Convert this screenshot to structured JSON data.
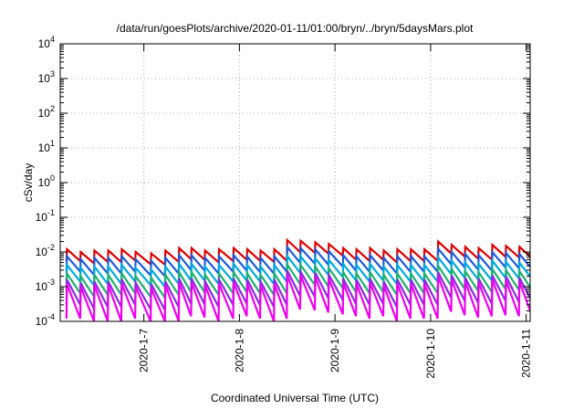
{
  "chart_data": {
    "type": "line",
    "title": "/data/run/goesPlots/archive/2020-01-11/01:00/bryn/../bryn/5daysMars.plot",
    "xlabel": "Coordinated Universal Time (UTC)",
    "ylabel": "cSv/day",
    "yscale": "log",
    "ylim": [
      0.0001,
      10000
    ],
    "xlim": [
      "2020-01-06T03:00",
      "2020-01-11T01:00"
    ],
    "y_ticks": [
      {
        "base": "10",
        "exp": "-4"
      },
      {
        "base": "10",
        "exp": "-3"
      },
      {
        "base": "10",
        "exp": "-2"
      },
      {
        "base": "10",
        "exp": "-1"
      },
      {
        "base": "10",
        "exp": "0"
      },
      {
        "base": "10",
        "exp": "1"
      },
      {
        "base": "10",
        "exp": "2"
      },
      {
        "base": "10",
        "exp": "3"
      },
      {
        "base": "10",
        "exp": "4"
      }
    ],
    "x_ticks": [
      "2020-1-7",
      "2020-1-8",
      "2020-1-9",
      "2020-1-10",
      "2020-1-11"
    ],
    "grid": true,
    "legend": "none",
    "peak_times": [
      "2020-01-06T04:42",
      "2020-01-06T08:09",
      "2020-01-06T11:36",
      "2020-01-06T15:04",
      "2020-01-06T18:28",
      "2020-01-06T21:57",
      "2020-01-07T01:50",
      "2020-01-07T05:25",
      "2020-01-07T08:52",
      "2020-01-07T11:59",
      "2020-01-07T15:23",
      "2020-01-07T18:54",
      "2020-01-07T22:33",
      "2020-01-08T01:58",
      "2020-01-08T05:19",
      "2020-01-08T08:47",
      "2020-01-08T12:01",
      "2020-01-08T15:22",
      "2020-01-08T19:04",
      "2020-01-08T22:27",
      "2020-01-09T02:05",
      "2020-01-09T05:24",
      "2020-01-09T08:49",
      "2020-01-09T12:15",
      "2020-01-09T15:40",
      "2020-01-09T19:04",
      "2020-01-09T22:28",
      "2020-01-10T01:54",
      "2020-01-10T05:18",
      "2020-01-10T08:42",
      "2020-01-10T12:05",
      "2020-01-10T15:31",
      "2020-01-10T18:57",
      "2020-01-10T22:19"
    ],
    "series": [
      {
        "color": "#dd0000",
        "peak": [
          0.012,
          0.01,
          0.011,
          0.011,
          0.012,
          0.01,
          0.009,
          0.011,
          0.013,
          0.013,
          0.011,
          0.012,
          0.013,
          0.012,
          0.011,
          0.012,
          0.022,
          0.021,
          0.019,
          0.017,
          0.013,
          0.012,
          0.013,
          0.011,
          0.012,
          0.012,
          0.012,
          0.02,
          0.016,
          0.014,
          0.013,
          0.016,
          0.015,
          0.014
        ],
        "trough": [
          0.0055,
          0.0047,
          0.0052,
          0.0051,
          0.0057,
          0.0044,
          0.0043,
          0.0052,
          0.0062,
          0.006,
          0.005,
          0.0055,
          0.006,
          0.0056,
          0.0052,
          0.0056,
          0.01,
          0.0095,
          0.009,
          0.0078,
          0.006,
          0.0055,
          0.006,
          0.005,
          0.0055,
          0.0055,
          0.0056,
          0.0091,
          0.0074,
          0.0064,
          0.006,
          0.0073,
          0.007,
          0.0064
        ]
      },
      {
        "color": "#1e5ad8",
        "peak": [
          0.0075,
          0.0062,
          0.0068,
          0.0068,
          0.0075,
          0.0062,
          0.0056,
          0.0068,
          0.0081,
          0.008,
          0.0068,
          0.0075,
          0.0081,
          0.0074,
          0.0068,
          0.0075,
          0.0138,
          0.013,
          0.0118,
          0.0105,
          0.0081,
          0.0075,
          0.0081,
          0.0068,
          0.0075,
          0.0075,
          0.0075,
          0.0124,
          0.0099,
          0.0087,
          0.0081,
          0.0099,
          0.0093,
          0.0087
        ],
        "trough": [
          0.0027,
          0.0022,
          0.0024,
          0.0024,
          0.0027,
          0.0021,
          0.002,
          0.0024,
          0.003,
          0.0029,
          0.0024,
          0.0027,
          0.0029,
          0.0026,
          0.0024,
          0.0027,
          0.0049,
          0.0046,
          0.0043,
          0.0038,
          0.0029,
          0.0027,
          0.0029,
          0.0024,
          0.0027,
          0.0027,
          0.0027,
          0.0044,
          0.0036,
          0.0031,
          0.0029,
          0.0036,
          0.0034,
          0.0031
        ]
      },
      {
        "color": "#00aadd",
        "peak": [
          0.0042,
          0.0035,
          0.0038,
          0.0038,
          0.0042,
          0.0035,
          0.0031,
          0.0038,
          0.0045,
          0.0045,
          0.0038,
          0.0042,
          0.0045,
          0.0042,
          0.0038,
          0.0042,
          0.0077,
          0.0073,
          0.0066,
          0.0059,
          0.0045,
          0.0042,
          0.0045,
          0.0038,
          0.0042,
          0.0042,
          0.0042,
          0.007,
          0.0056,
          0.0049,
          0.0045,
          0.0056,
          0.0052,
          0.0049
        ],
        "trough": [
          0.0014,
          0.0011,
          0.0012,
          0.0012,
          0.0014,
          0.0011,
          0.001,
          0.0012,
          0.0015,
          0.0015,
          0.0012,
          0.0014,
          0.0015,
          0.0014,
          0.0012,
          0.0014,
          0.0025,
          0.0024,
          0.0022,
          0.0019,
          0.0015,
          0.0014,
          0.0015,
          0.0012,
          0.0014,
          0.0014,
          0.0014,
          0.0023,
          0.0018,
          0.0016,
          0.0015,
          0.0018,
          0.0017,
          0.0016
        ]
      },
      {
        "color": "#20b070",
        "peak": [
          0.0024,
          0.002,
          0.0022,
          0.0022,
          0.0024,
          0.002,
          0.0018,
          0.0022,
          0.0026,
          0.0026,
          0.0022,
          0.0024,
          0.0026,
          0.0024,
          0.0022,
          0.0024,
          0.0044,
          0.0042,
          0.0038,
          0.0034,
          0.0026,
          0.0024,
          0.0026,
          0.0022,
          0.0024,
          0.0024,
          0.0024,
          0.004,
          0.0032,
          0.0028,
          0.0026,
          0.0032,
          0.003,
          0.0028
        ],
        "trough": [
          0.00065,
          0.00052,
          0.00058,
          0.00058,
          0.00065,
          0.0005,
          0.00048,
          0.00058,
          0.0007,
          0.00069,
          0.00058,
          0.00065,
          0.0007,
          0.00064,
          0.00058,
          0.00065,
          0.00118,
          0.00112,
          0.00102,
          0.00091,
          0.0007,
          0.00065,
          0.0007,
          0.00058,
          0.00065,
          0.00065,
          0.00065,
          0.00106,
          0.00086,
          0.00075,
          0.0007,
          0.00086,
          0.0008,
          0.00075
        ]
      },
      {
        "color": "#8a2be2",
        "peak": [
          0.0016,
          0.0013,
          0.0014,
          0.0014,
          0.0016,
          0.0013,
          0.0012,
          0.0014,
          0.0017,
          0.0017,
          0.0014,
          0.0016,
          0.0017,
          0.0016,
          0.0014,
          0.0016,
          0.0029,
          0.0027,
          0.0025,
          0.0022,
          0.0017,
          0.0016,
          0.0017,
          0.0014,
          0.0016,
          0.0016,
          0.0016,
          0.0026,
          0.0021,
          0.0018,
          0.0017,
          0.0021,
          0.002,
          0.0018
        ],
        "trough": [
          0.0003,
          0.00023,
          0.00026,
          0.00026,
          0.0003,
          0.00022,
          0.00021,
          0.00026,
          0.00032,
          0.00031,
          0.00026,
          0.0003,
          0.00032,
          0.00029,
          0.00026,
          0.0003,
          0.00054,
          0.00051,
          0.00046,
          0.00041,
          0.00032,
          0.0003,
          0.00032,
          0.00026,
          0.0003,
          0.0003,
          0.0003,
          0.00048,
          0.00039,
          0.00034,
          0.00032,
          0.00039,
          0.00036,
          0.00034
        ]
      },
      {
        "color": "#ee00ee",
        "peak": [
          0.0012,
          0.001,
          0.0011,
          0.0011,
          0.0012,
          0.001,
          0.0009,
          0.0011,
          0.0013,
          0.0013,
          0.0011,
          0.0012,
          0.0013,
          0.0012,
          0.0011,
          0.0012,
          0.0022,
          0.0021,
          0.0019,
          0.0017,
          0.0013,
          0.0012,
          0.0013,
          0.0011,
          0.0012,
          0.0012,
          0.0012,
          0.002,
          0.0016,
          0.0014,
          0.0013,
          0.0016,
          0.0015,
          0.0014
        ],
        "trough": [
          0.00012,
          0.0001,
          0.0001,
          0.0001,
          0.00012,
          0.0001,
          0.0001,
          0.0001,
          0.00014,
          0.00013,
          0.0001,
          0.00012,
          0.00014,
          0.00012,
          0.0001,
          0.00012,
          0.00022,
          0.00021,
          0.00018,
          0.00016,
          0.00014,
          0.00012,
          0.00014,
          0.0001,
          0.00012,
          0.00012,
          0.00012,
          0.00019,
          0.00015,
          0.00013,
          0.00014,
          0.00015,
          0.00014,
          0.00013
        ]
      }
    ]
  }
}
